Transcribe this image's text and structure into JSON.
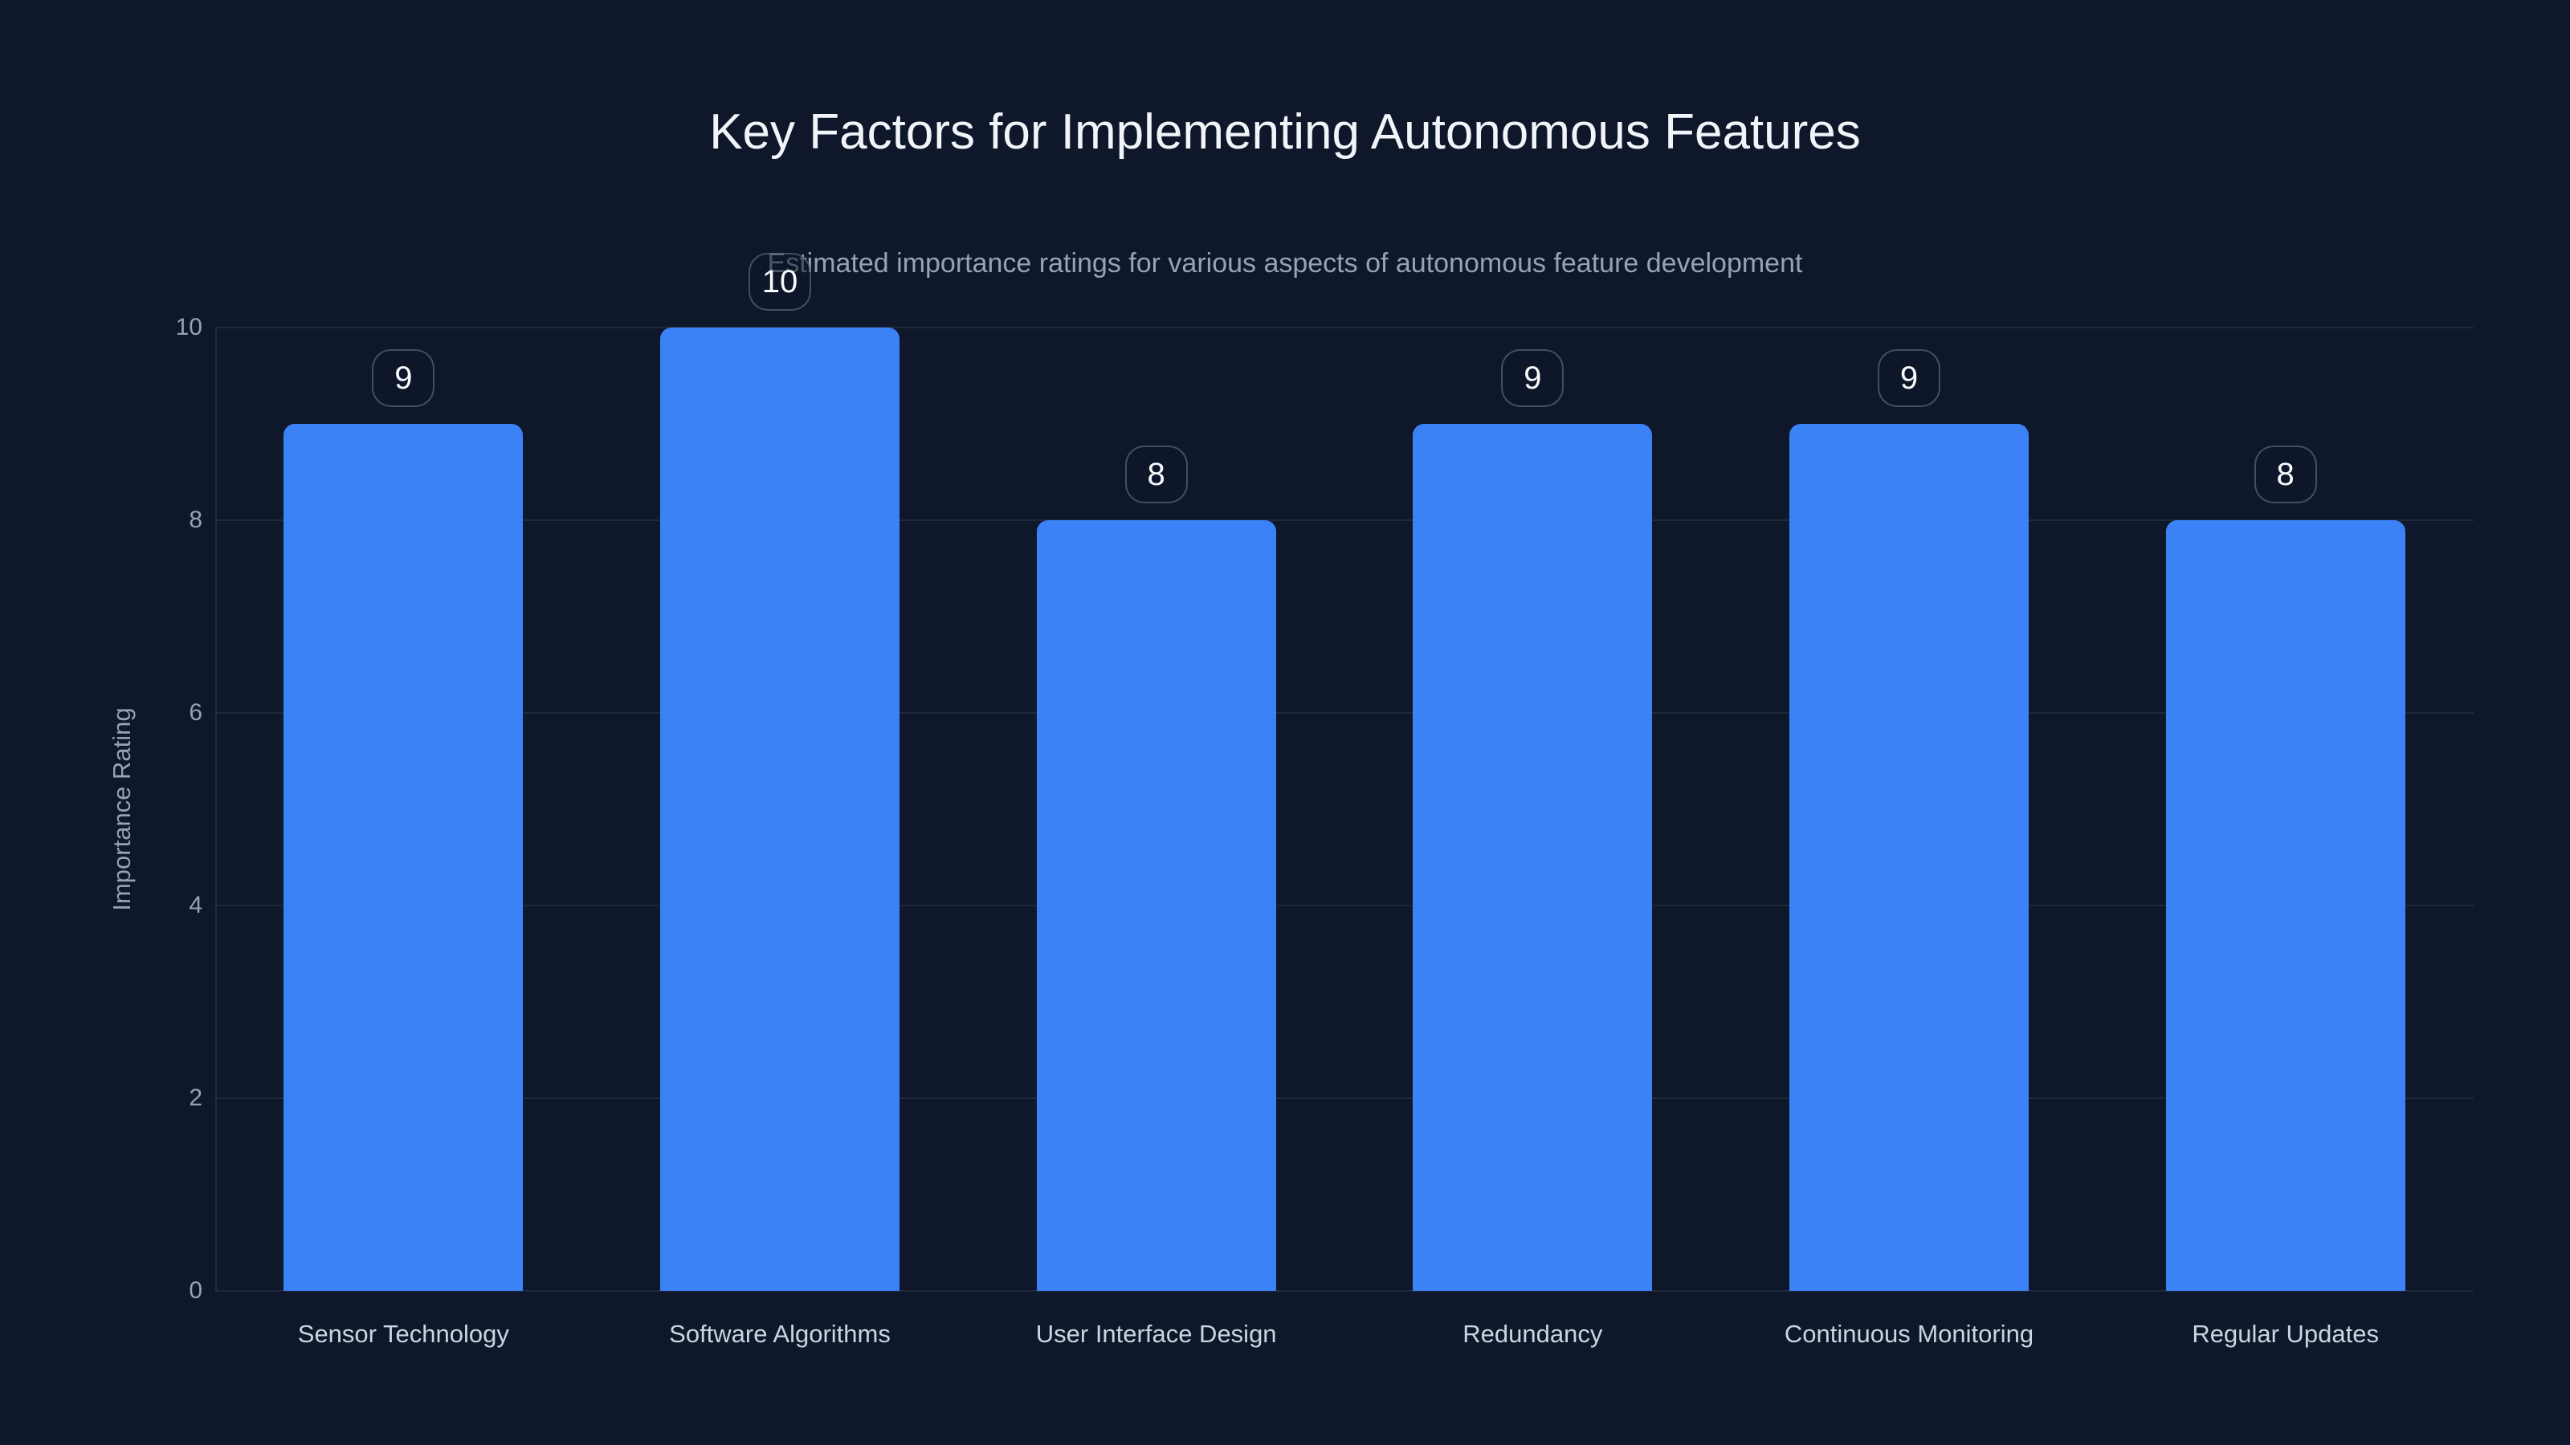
{
  "header": {
    "title": "Key Factors for Implementing Autonomous Features",
    "subtitle": "Estimated importance ratings for various aspects of autonomous feature development"
  },
  "chart_data": {
    "type": "bar",
    "title": "Key Factors for Implementing Autonomous Features",
    "subtitle": "Estimated importance ratings for various aspects of autonomous feature development",
    "categories": [
      "Sensor Technology",
      "Software Algorithms",
      "User Interface Design",
      "Redundancy",
      "Continuous Monitoring",
      "Regular Updates"
    ],
    "values": [
      9,
      10,
      8,
      9,
      9,
      8
    ],
    "data_labels": [
      "9",
      "10",
      "8",
      "9",
      "9",
      "8"
    ],
    "xlabel": "",
    "ylabel": "Importance Rating",
    "ylim": [
      0,
      10
    ],
    "yticks": [
      0,
      2,
      4,
      6,
      8,
      10
    ],
    "grid": "horizontal",
    "legend": "none",
    "colors": {
      "background": "#0f172a",
      "bar": "#3b82f6",
      "gridline": "rgba(148,163,184,0.13)",
      "axis_line": "rgba(148,163,184,0.13)",
      "title": "#f1f5f9",
      "subtitle": "#94a3b8",
      "tick_label": "#94a3b8",
      "category_label": "#cbd5e1",
      "badge_text": "#f8fafc",
      "badge_border": "rgba(148,163,184,0.4)",
      "badge_background": "rgba(15,23,42,0.55)"
    }
  }
}
